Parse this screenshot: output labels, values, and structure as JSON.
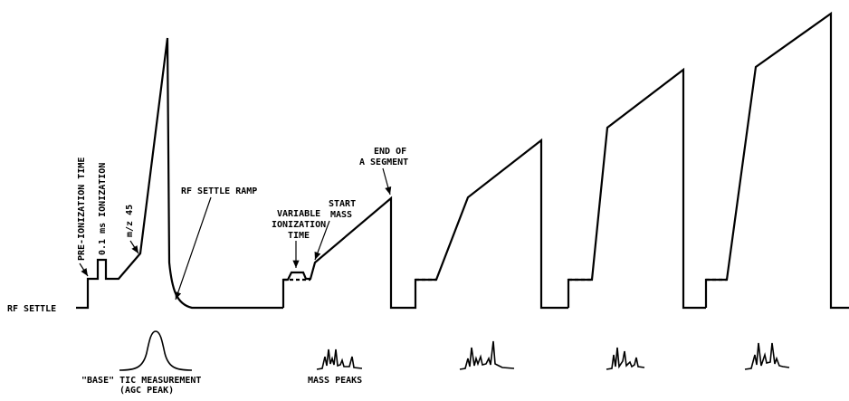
{
  "labels": {
    "rf_settle": "RF SETTLE",
    "pre_ionization_time": "PRE-IONIZATION TIME",
    "ionization_01ms": "0.1 ms IONIZATION",
    "mz45": "m/z 45",
    "rf_settle_ramp": "RF SETTLE RAMP",
    "variable_ionization_1": "VARIABLE",
    "variable_ionization_2": "IONIZATION",
    "variable_ionization_3": "TIME",
    "start_mass_1": "START",
    "start_mass_2": "MASS",
    "end_segment_1": "END OF",
    "end_segment_2": "A SEGMENT",
    "base_tic_1": "\"BASE\" TIC MEASUREMENT",
    "base_tic_2": "(AGC PEAK)",
    "mass_peaks": "MASS PEAKS"
  }
}
